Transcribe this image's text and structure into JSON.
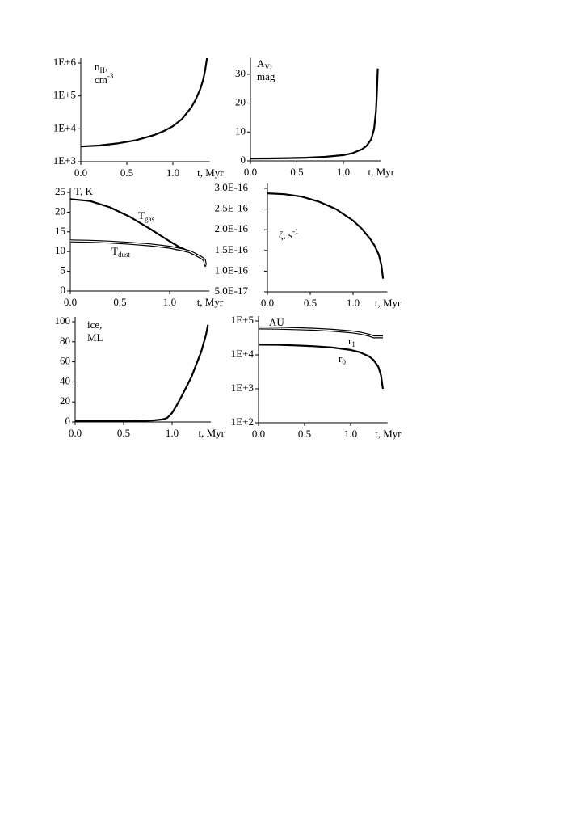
{
  "chart_data": [
    {
      "type": "line",
      "log_y": true,
      "ylabel": [
        [
          {
            "text": "n"
          },
          {
            "text": "H",
            "sub": true
          },
          {
            "text": ","
          }
        ],
        [
          {
            "text": "cm"
          },
          {
            "text": "-3",
            "sup": true
          }
        ]
      ],
      "xlabel": "t, Myr",
      "x": [
        0,
        0.2,
        0.4,
        0.6,
        0.8,
        0.9,
        1.0,
        1.1,
        1.2,
        1.25,
        1.3,
        1.33,
        1.35,
        1.37
      ],
      "series": [
        {
          "color": "#000000",
          "style": "single",
          "values": [
            2900,
            3100,
            3600,
            4500,
            6500,
            8500,
            12000,
            20000,
            45000,
            80000,
            170000,
            320000,
            600000,
            1400000
          ]
        }
      ],
      "xlim": [
        0,
        1.4
      ],
      "xticks": [
        {
          "value": 0,
          "label": "0.0"
        },
        {
          "value": 0.5,
          "label": "0.5"
        },
        {
          "value": 1,
          "label": "1.0"
        }
      ],
      "ylim": [
        1000,
        1000000
      ],
      "yticks": [
        {
          "value": 1000,
          "label": "1E+3"
        },
        {
          "value": 10000,
          "label": "1E+4"
        },
        {
          "value": 100000,
          "label": "1E+5"
        },
        {
          "value": 1000000,
          "label": "1E+6"
        }
      ]
    },
    {
      "type": "line",
      "log_y": false,
      "ylabel": [
        [
          {
            "text": "A"
          },
          {
            "text": "V",
            "sub": true
          },
          {
            "text": ","
          }
        ],
        [
          {
            "text": "mag"
          }
        ]
      ],
      "xlabel": "t, Myr",
      "x": [
        0,
        0.2,
        0.4,
        0.6,
        0.8,
        1.0,
        1.1,
        1.2,
        1.25,
        1.3,
        1.33,
        1.35,
        1.36,
        1.37
      ],
      "series": [
        {
          "color": "#000000",
          "style": "single",
          "values": [
            0.8,
            0.85,
            0.95,
            1.1,
            1.4,
            2.0,
            2.7,
            4,
            5.2,
            7.5,
            11,
            17,
            23,
            32
          ]
        }
      ],
      "xlim": [
        0,
        1.4
      ],
      "xticks": [
        {
          "value": 0,
          "label": "0.0"
        },
        {
          "value": 0.5,
          "label": "0.5"
        },
        {
          "value": 1,
          "label": "1.0"
        }
      ],
      "ylim": [
        0,
        34
      ],
      "yticks": [
        0,
        10,
        20,
        30
      ]
    },
    {
      "type": "line",
      "log_y": false,
      "ylabel": [
        [
          {
            "text": "T, K"
          }
        ]
      ],
      "xlabel": "t, Myr",
      "x": [
        0,
        0.2,
        0.4,
        0.6,
        0.8,
        1.0,
        1.1,
        1.2,
        1.25,
        1.3,
        1.33,
        1.35,
        1.36
      ],
      "series": [
        {
          "label": [
            {
              "text": "T"
            },
            {
              "text": "gas",
              "sub": true
            }
          ],
          "color": "#000000",
          "style": "single",
          "values": [
            23.3,
            22.8,
            21.2,
            18.8,
            15.8,
            12.6,
            11.1,
            10,
            9.5,
            8.8,
            8.3,
            7.6,
            6.2
          ]
        },
        {
          "label": [
            {
              "text": "T"
            },
            {
              "text": "dust",
              "sub": true
            }
          ],
          "color": "#000000",
          "style": "double",
          "values": [
            12.7,
            12.6,
            12.4,
            12.1,
            11.7,
            11.1,
            10.6,
            10,
            9.4,
            8.7,
            8.3,
            7.8,
            6.6
          ]
        }
      ],
      "xlim": [
        0,
        1.4
      ],
      "xticks": [
        {
          "value": 0,
          "label": "0.0"
        },
        {
          "value": 0.5,
          "label": "0.5"
        },
        {
          "value": 1,
          "label": "1.0"
        }
      ],
      "ylim": [
        0,
        25
      ],
      "yticks": [
        0,
        5,
        10,
        15,
        20,
        25
      ]
    },
    {
      "type": "line",
      "log_y": false,
      "ylabel": [
        [
          {
            "text": "ζ, s"
          },
          {
            "text": "-1",
            "sup": true
          }
        ]
      ],
      "xlabel": "t, Myr",
      "x": [
        0,
        0.2,
        0.4,
        0.6,
        0.8,
        1.0,
        1.1,
        1.2,
        1.25,
        1.3,
        1.33,
        1.35
      ],
      "series": [
        {
          "color": "#000000",
          "style": "single",
          "values": [
            2.88e-16,
            2.86e-16,
            2.8e-16,
            2.68e-16,
            2.5e-16,
            2.22e-16,
            2.03e-16,
            1.78e-16,
            1.62e-16,
            1.4e-16,
            1.15e-16,
            8.2e-17
          ]
        }
      ],
      "xlim": [
        0,
        1.4
      ],
      "xticks": [
        {
          "value": 0,
          "label": "0.0"
        },
        {
          "value": 0.5,
          "label": "0.5"
        },
        {
          "value": 1,
          "label": "1.0"
        }
      ],
      "ylim": [
        5e-17,
        3e-16
      ],
      "yticks": [
        {
          "value": 5e-17,
          "label": "5.0E-17"
        },
        {
          "value": 1e-16,
          "label": "1.0E-16"
        },
        {
          "value": 1.5e-16,
          "label": "1.5E-16"
        },
        {
          "value": 2e-16,
          "label": "2.0E-16"
        },
        {
          "value": 2.5e-16,
          "label": "2.5E-16"
        },
        {
          "value": 3e-16,
          "label": "3.0E-16"
        }
      ]
    },
    {
      "type": "line",
      "log_y": false,
      "ylabel": [
        [
          {
            "text": "ice,"
          }
        ],
        [
          {
            "text": "ML"
          }
        ]
      ],
      "xlabel": "t, Myr",
      "x": [
        0,
        0.2,
        0.4,
        0.6,
        0.8,
        0.9,
        0.95,
        1.0,
        1.05,
        1.1,
        1.2,
        1.3,
        1.35,
        1.37
      ],
      "series": [
        {
          "color": "#000000",
          "style": "single",
          "values": [
            1,
            1,
            1,
            1,
            1.5,
            2.5,
            4,
            9,
            17,
            26,
            45,
            70,
            87,
            97
          ]
        }
      ],
      "xlim": [
        0,
        1.4
      ],
      "xticks": [
        {
          "value": 0,
          "label": "0.0"
        },
        {
          "value": 0.5,
          "label": "0.5"
        },
        {
          "value": 1,
          "label": "1.0"
        }
      ],
      "ylim": [
        0,
        100
      ],
      "yticks": [
        0,
        20,
        40,
        60,
        80,
        100
      ]
    },
    {
      "type": "line",
      "log_y": true,
      "ylabel": [
        [
          {
            "text": "AU"
          }
        ]
      ],
      "xlabel": "t, Myr",
      "x": [
        0,
        0.2,
        0.4,
        0.6,
        0.8,
        1.0,
        1.1,
        1.2,
        1.25,
        1.3,
        1.33,
        1.35
      ],
      "series": [
        {
          "label": [
            {
              "text": "r"
            },
            {
              "text": "1",
              "sub": true
            }
          ],
          "color": "#000000",
          "style": "double",
          "values": [
            62000,
            61000,
            59000,
            57000,
            53000,
            48000,
            44000,
            38000,
            34000,
            34000,
            34000,
            34000
          ]
        },
        {
          "label": [
            {
              "text": "r"
            },
            {
              "text": "0",
              "sub": true
            }
          ],
          "color": "#000000",
          "style": "single",
          "values": [
            20000,
            19800,
            19000,
            18000,
            16500,
            14000,
            12000,
            9000,
            7000,
            4500,
            2500,
            1000
          ]
        }
      ],
      "xlim": [
        0,
        1.4
      ],
      "xticks": [
        {
          "value": 0,
          "label": "0.0"
        },
        {
          "value": 0.5,
          "label": "0.5"
        },
        {
          "value": 1,
          "label": "1.0"
        }
      ],
      "ylim": [
        100,
        100000
      ],
      "yticks": [
        {
          "value": 100,
          "label": "1E+2"
        },
        {
          "value": 1000,
          "label": "1E+3"
        },
        {
          "value": 10000,
          "label": "1E+4"
        },
        {
          "value": 100000,
          "label": "1E+5"
        }
      ]
    }
  ]
}
